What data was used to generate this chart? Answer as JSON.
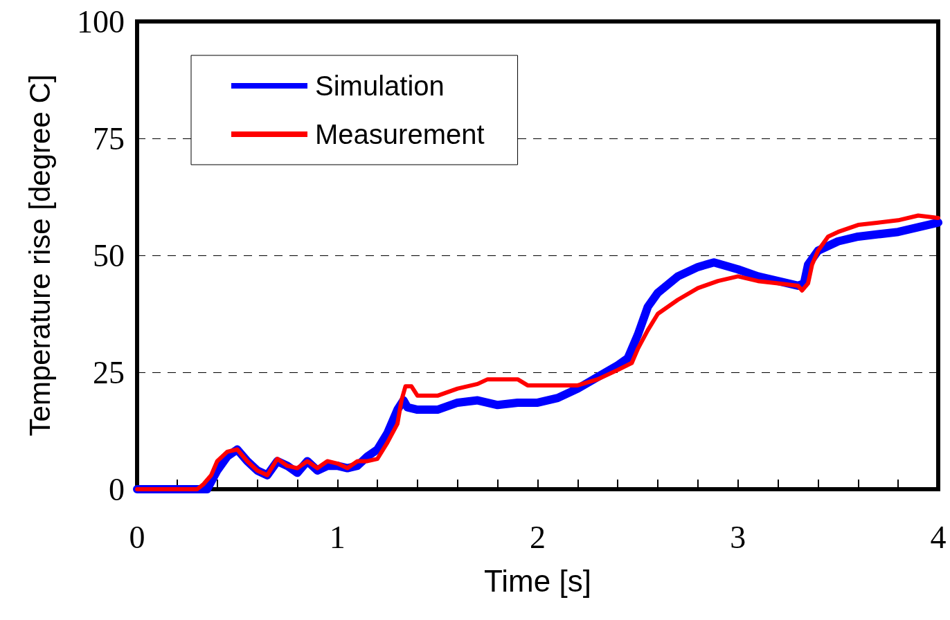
{
  "chart_data": {
    "type": "line",
    "xlabel": "Time [s]",
    "ylabel": "Temperature rise [degree C]",
    "xlim": [
      0,
      4
    ],
    "ylim": [
      0,
      100
    ],
    "xticks": [
      0,
      {
        "value": 0.2,
        "label": null
      },
      {
        "value": 0.4,
        "label": null
      },
      {
        "value": 0.6,
        "label": null
      },
      {
        "value": 0.8,
        "label": null
      },
      1,
      {
        "value": 1.2,
        "label": null
      },
      {
        "value": 1.4,
        "label": null
      },
      {
        "value": 1.6,
        "label": null
      },
      {
        "value": 1.8,
        "label": null
      },
      2,
      {
        "value": 2.2,
        "label": null
      },
      {
        "value": 2.4,
        "label": null
      },
      {
        "value": 2.6,
        "label": null
      },
      {
        "value": 2.8,
        "label": null
      },
      3,
      {
        "value": 3.2,
        "label": null
      },
      {
        "value": 3.4,
        "label": null
      },
      {
        "value": 3.6,
        "label": null
      },
      {
        "value": 3.8,
        "label": null
      },
      4
    ],
    "yticks": [
      0,
      25,
      50,
      75,
      100
    ],
    "grid": "y",
    "legend": "top left",
    "marker": "none",
    "line_style": "solid",
    "series": [
      {
        "name": "Simulation",
        "color": "#0000ff",
        "x": [
          0,
          0.3,
          0.35,
          0.4,
          0.45,
          0.5,
          0.55,
          0.6,
          0.65,
          0.7,
          0.75,
          0.8,
          0.85,
          0.9,
          0.95,
          1.0,
          1.05,
          1.1,
          1.15,
          1.2,
          1.25,
          1.3,
          1.33,
          1.35,
          1.4,
          1.5,
          1.6,
          1.7,
          1.8,
          1.9,
          2.0,
          2.1,
          2.2,
          2.3,
          2.4,
          2.45,
          2.5,
          2.55,
          2.6,
          2.7,
          2.8,
          2.88,
          3.0,
          3.1,
          3.2,
          3.3,
          3.33,
          3.35,
          3.4,
          3.5,
          3.6,
          3.7,
          3.8,
          3.9,
          4.0
        ],
        "values": [
          0,
          0,
          0,
          4,
          7,
          8.5,
          6,
          4,
          3,
          6,
          5,
          3.5,
          6,
          4,
          5,
          5,
          4.5,
          5,
          7,
          8.5,
          12,
          17,
          19,
          17.5,
          17,
          17,
          18.5,
          19,
          18,
          18.5,
          18.5,
          19.5,
          21.5,
          24,
          26.5,
          28,
          33,
          39,
          42,
          45.5,
          47.5,
          48.5,
          47,
          45.5,
          44.5,
          43.5,
          44,
          48,
          51,
          53,
          54,
          54.5,
          55,
          56,
          57
        ]
      },
      {
        "name": "Measurement",
        "color": "#ff0000",
        "x": [
          0,
          0.3,
          0.33,
          0.37,
          0.4,
          0.45,
          0.5,
          0.55,
          0.6,
          0.65,
          0.7,
          0.75,
          0.8,
          0.85,
          0.9,
          0.95,
          1.0,
          1.05,
          1.1,
          1.15,
          1.2,
          1.25,
          1.3,
          1.32,
          1.34,
          1.37,
          1.4,
          1.5,
          1.6,
          1.7,
          1.75,
          1.9,
          1.95,
          2.2,
          2.3,
          2.4,
          2.47,
          2.5,
          2.55,
          2.6,
          2.7,
          2.8,
          2.9,
          3.0,
          3.1,
          3.2,
          3.3,
          3.32,
          3.35,
          3.37,
          3.4,
          3.45,
          3.5,
          3.6,
          3.7,
          3.8,
          3.9,
          4.0
        ],
        "values": [
          0,
          0,
          1,
          3,
          6,
          8,
          8.5,
          6,
          4,
          3,
          6.5,
          5,
          4.5,
          6,
          4.5,
          6,
          5.5,
          4.5,
          6,
          6,
          6.5,
          10,
          14,
          19,
          22,
          22,
          20,
          20,
          21.5,
          22.5,
          23.5,
          23.5,
          22.2,
          22.2,
          23.5,
          25.5,
          27,
          30,
          34,
          37.5,
          40.5,
          43,
          44.5,
          45.5,
          44.5,
          44,
          43.5,
          42.5,
          44,
          48,
          51,
          54,
          55,
          56.5,
          57,
          57.5,
          58.5,
          58
        ]
      }
    ]
  }
}
